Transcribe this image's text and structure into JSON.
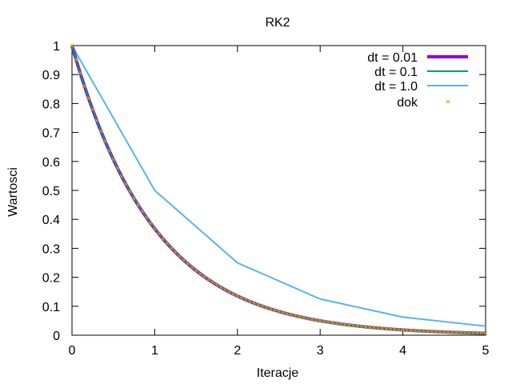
{
  "chart_data": {
    "type": "line",
    "title": "RK2",
    "xlabel": "Iteracje",
    "ylabel": "Wartosci",
    "xlim": [
      0,
      5
    ],
    "ylim": [
      0,
      1
    ],
    "x_ticks": [
      "0",
      "1",
      "2",
      "3",
      "4",
      "5"
    ],
    "y_ticks": [
      "0",
      "0.1",
      "0.2",
      "0.3",
      "0.4",
      "0.5",
      "0.6",
      "0.7",
      "0.8",
      "0.9",
      "1"
    ],
    "grid": false,
    "legend_position": "top-right",
    "series": [
      {
        "name": "dt = 0.01",
        "style": "line",
        "color": "#9400d3",
        "function": "rk2-exponential-decay",
        "step": 0.01
      },
      {
        "name": "dt = 0.1",
        "style": "line",
        "color": "#009e73",
        "function": "rk2-exponential-decay",
        "step": 0.1
      },
      {
        "name": "dt = 1.0",
        "style": "line",
        "color": "#56b4e9",
        "x": [
          0,
          1,
          2,
          3,
          4,
          5
        ],
        "y": [
          1.0,
          0.5,
          0.25,
          0.125,
          0.0625,
          0.03125
        ]
      },
      {
        "name": "dok",
        "style": "points",
        "color": "#e69f00",
        "function": "exp(-x)",
        "step": 0.05
      }
    ]
  }
}
